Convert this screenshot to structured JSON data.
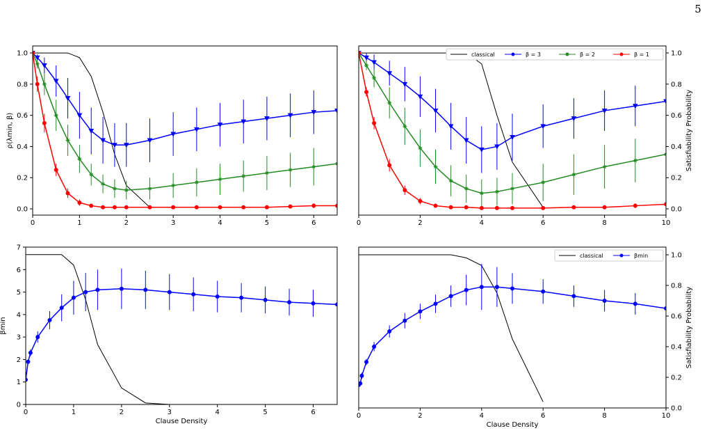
{
  "page_number": "5",
  "chart_data": [
    {
      "type": "line",
      "ylabel": "ρ(λmin, β)",
      "ylim": [
        -0.04,
        1.045
      ],
      "yticks": [
        {
          "value": 0,
          "label": "0.0"
        },
        0.2,
        0.4,
        0.6,
        0.8,
        {
          "value": 1,
          "label": "1.0"
        }
      ],
      "yaxis_side": "left",
      "xlim": [
        0,
        6.5
      ],
      "xticks": [
        0,
        1,
        2,
        3,
        4,
        5,
        6
      ],
      "x": [
        0,
        0.1,
        0.25,
        0.5,
        0.75,
        1,
        1.25,
        1.5,
        1.75,
        2,
        2.5,
        3,
        3.5,
        4,
        4.5,
        5,
        5.5,
        6,
        6.5
      ],
      "series": [
        {
          "color": "#000000",
          "values": [
            1,
            1,
            1,
            1,
            1,
            0.97,
            0.85,
            0.62,
            0.35,
            0.15,
            0.01,
            null,
            null,
            null,
            null,
            null,
            null,
            null,
            null
          ]
        },
        {
          "color": "#0000ff",
          "marker": "v",
          "values": [
            1.0,
            0.97,
            0.92,
            0.82,
            0.71,
            0.6,
            0.5,
            0.44,
            0.41,
            0.41,
            0.44,
            0.48,
            0.51,
            0.54,
            0.56,
            0.58,
            0.6,
            0.62,
            0.63
          ],
          "errors": [
            0,
            0.02,
            0.05,
            0.1,
            0.13,
            0.15,
            0.15,
            0.15,
            0.14,
            0.14,
            0.14,
            0.14,
            0.14,
            0.14,
            0.14,
            0.14,
            0.14,
            0.14,
            0.14
          ]
        },
        {
          "color": "#228b22",
          "marker": "*",
          "values": [
            1.0,
            0.93,
            0.8,
            0.6,
            0.44,
            0.32,
            0.22,
            0.16,
            0.13,
            0.12,
            0.13,
            0.15,
            0.17,
            0.19,
            0.21,
            0.23,
            0.25,
            0.27,
            0.29
          ],
          "errors": [
            0,
            0.03,
            0.07,
            0.1,
            0.1,
            0.09,
            0.07,
            0.06,
            0.06,
            0.06,
            0.07,
            0.08,
            0.09,
            0.1,
            0.1,
            0.11,
            0.11,
            0.12,
            0.12
          ]
        },
        {
          "color": "#ff0000",
          "marker": "o",
          "values": [
            1.0,
            0.8,
            0.55,
            0.25,
            0.1,
            0.04,
            0.02,
            0.01,
            0.01,
            0.01,
            0.01,
            0.01,
            0.01,
            0.01,
            0.01,
            0.01,
            0.015,
            0.02,
            0.02
          ],
          "errors": [
            0,
            0.05,
            0.06,
            0.04,
            0.03,
            0.02,
            0.01,
            0.01,
            0.01,
            0.01,
            0.01,
            0.01,
            0.01,
            0.01,
            0.01,
            0.01,
            0.01,
            0.015,
            0.02
          ]
        }
      ]
    },
    {
      "type": "line",
      "ylabel": "Satisfiability Probability",
      "ylim": [
        -0.04,
        1.045
      ],
      "yticks": [
        {
          "value": 0,
          "label": "0.0"
        },
        0.2,
        0.4,
        0.6,
        0.8,
        {
          "value": 1,
          "label": "1.0"
        }
      ],
      "yaxis_side": "right",
      "xlim": [
        0,
        10
      ],
      "xticks": [
        0,
        2,
        4,
        6,
        8,
        10
      ],
      "legend": "upper right",
      "x": [
        0,
        0.25,
        0.5,
        1,
        1.5,
        2,
        2.5,
        3,
        3.5,
        4,
        4.5,
        5,
        6,
        7,
        8,
        9,
        10
      ],
      "series": [
        {
          "name": "classical",
          "color": "#000000",
          "values": [
            1,
            1,
            1,
            1,
            1,
            1,
            1,
            1,
            1,
            0.93,
            0.6,
            0.3,
            0.01,
            null,
            null,
            null,
            null
          ]
        },
        {
          "name": "β = 3",
          "color": "#0000ff",
          "marker": "v",
          "values": [
            1.0,
            0.97,
            0.94,
            0.87,
            0.8,
            0.72,
            0.63,
            0.53,
            0.44,
            0.38,
            0.4,
            0.46,
            0.53,
            0.58,
            0.63,
            0.66,
            0.69
          ],
          "errors": [
            0,
            0.03,
            0.05,
            0.08,
            0.11,
            0.13,
            0.14,
            0.15,
            0.15,
            0.15,
            0.15,
            0.15,
            0.14,
            0.13,
            0.13,
            0.13,
            0.13
          ]
        },
        {
          "name": "β = 2",
          "color": "#228b22",
          "marker": "*",
          "values": [
            1,
            0.92,
            0.84,
            0.68,
            0.53,
            0.39,
            0.27,
            0.18,
            0.13,
            0.1,
            0.11,
            0.13,
            0.17,
            0.22,
            0.27,
            0.31,
            0.35
          ],
          "errors": [
            0,
            0.03,
            0.06,
            0.1,
            0.12,
            0.12,
            0.11,
            0.1,
            0.09,
            0.09,
            0.09,
            0.1,
            0.12,
            0.13,
            0.14,
            0.14,
            0.14
          ]
        },
        {
          "name": "β = 1",
          "color": "#ff0000",
          "marker": "o",
          "values": [
            1,
            0.75,
            0.55,
            0.28,
            0.12,
            0.05,
            0.02,
            0.01,
            0.01,
            0.005,
            0.005,
            0.005,
            0.005,
            0.01,
            0.01,
            0.02,
            0.03
          ],
          "errors": [
            0,
            0.03,
            0.04,
            0.04,
            0.03,
            0.02,
            0.01,
            0.01,
            0.01,
            0.005,
            0.005,
            0.005,
            0.005,
            0.01,
            0.01,
            0.015,
            0.02
          ]
        }
      ]
    },
    {
      "type": "line",
      "ylabel": "βmin",
      "xlabel": "Clause Density",
      "ylim": [
        0,
        7
      ],
      "yticks": [
        0,
        1,
        2,
        3,
        4,
        5,
        6,
        7
      ],
      "yaxis_side": "left",
      "y2lim": [
        0,
        1.05
      ],
      "xlim": [
        0,
        6.5
      ],
      "xticks": [
        0,
        1,
        2,
        3,
        4,
        5,
        6
      ],
      "x": [
        0,
        0.05,
        0.1,
        0.25,
        0.5,
        0.75,
        1,
        1.25,
        1.5,
        2,
        2.5,
        3,
        3.5,
        4,
        4.5,
        5,
        5.5,
        6,
        6.5
      ],
      "series": [
        {
          "color": "#000000",
          "axis": "y2",
          "values": [
            1,
            1,
            1,
            1,
            1,
            1,
            0.93,
            0.7,
            0.4,
            0.11,
            0.01,
            0,
            null,
            null,
            null,
            null,
            null,
            null,
            null
          ]
        },
        {
          "color": "#0000ff",
          "marker": "o",
          "values": [
            1.1,
            1.9,
            2.3,
            3.0,
            3.75,
            4.3,
            4.75,
            5.0,
            5.1,
            5.15,
            5.1,
            5.0,
            4.9,
            4.8,
            4.75,
            4.65,
            4.55,
            4.5,
            4.45
          ],
          "errors": [
            0.05,
            0.1,
            0.15,
            0.25,
            0.4,
            0.6,
            0.75,
            0.85,
            0.9,
            0.9,
            0.85,
            0.8,
            0.75,
            0.7,
            0.65,
            0.6,
            0.6,
            0.6,
            0.6
          ]
        }
      ]
    },
    {
      "type": "line",
      "ylabel": "Satisfiability Probability",
      "xlabel": "Clause Density",
      "ylim": [
        0,
        1.05
      ],
      "yticks": [
        {
          "value": 0,
          "label": "0.0"
        },
        0.2,
        0.4,
        0.6,
        0.8,
        {
          "value": 1,
          "label": "1.0"
        }
      ],
      "yaxis_side": "right",
      "xlim": [
        0,
        10
      ],
      "xticks": [
        0,
        2,
        4,
        6,
        8,
        10
      ],
      "legend": "upper right",
      "x": [
        0,
        0.05,
        0.1,
        0.25,
        0.5,
        1,
        1.5,
        2,
        2.5,
        3,
        3.5,
        4,
        4.5,
        5,
        6,
        7,
        8,
        9,
        10
      ],
      "series": [
        {
          "name": "classical",
          "color": "#000000",
          "values": [
            1,
            1,
            1,
            1,
            1,
            1,
            1,
            1,
            1,
            1,
            0.98,
            0.93,
            0.75,
            0.45,
            0.04,
            null,
            null,
            null,
            null
          ]
        },
        {
          "name": "βmin",
          "color": "#0000ff",
          "marker": "o",
          "values": [
            0.15,
            0.16,
            0.21,
            0.3,
            0.4,
            0.5,
            0.57,
            0.63,
            0.68,
            0.73,
            0.77,
            0.79,
            0.79,
            0.78,
            0.76,
            0.73,
            0.7,
            0.68,
            0.65
          ],
          "errors": [
            0,
            0.01,
            0.02,
            0.02,
            0.03,
            0.04,
            0.05,
            0.05,
            0.06,
            0.07,
            0.1,
            0.15,
            0.13,
            0.1,
            0.08,
            0.07,
            0.07,
            0.07,
            0.07
          ]
        }
      ]
    }
  ]
}
